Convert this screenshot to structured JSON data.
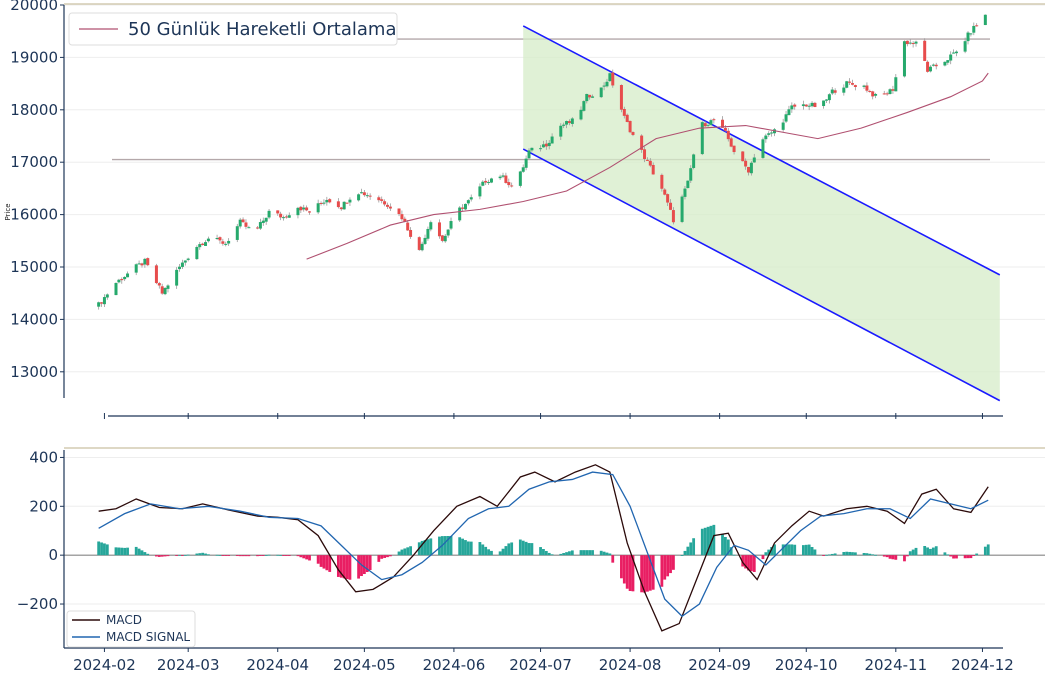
{
  "chart_data": [
    {
      "type": "candlestick",
      "title": "",
      "ylabel": "Price",
      "ylim": [
        12500,
        20000
      ],
      "yticks": [
        13000,
        14000,
        15000,
        16000,
        17000,
        18000,
        19000,
        20000
      ],
      "legend": {
        "label": "50 Günlük Hareketli Ortalama",
        "placement": "top-left"
      },
      "colors": {
        "up": "#26a96c",
        "down": "#e74c4c",
        "ma": "#b05070",
        "channel": "#1a1aff",
        "channel_fill": "#d6ecc8",
        "hline": "#b4a8aa"
      },
      "horizontal_levels": [
        19350,
        17050
      ],
      "close_anchors": [
        [
          "2024-01-30",
          14280
        ],
        [
          "2024-02-05",
          14700
        ],
        [
          "2024-02-12",
          15000
        ],
        [
          "2024-02-15",
          15100
        ],
        [
          "2024-02-21",
          14500
        ],
        [
          "2024-02-27",
          15000
        ],
        [
          "2024-03-04",
          15400
        ],
        [
          "2024-03-08",
          15550
        ],
        [
          "2024-03-14",
          15450
        ],
        [
          "2024-03-19",
          15850
        ],
        [
          "2024-03-24",
          15650
        ],
        [
          "2024-03-29",
          16050
        ],
        [
          "2024-04-03",
          15950
        ],
        [
          "2024-04-08",
          16150
        ],
        [
          "2024-04-12",
          16050
        ],
        [
          "2024-04-18",
          16300
        ],
        [
          "2024-04-23",
          16150
        ],
        [
          "2024-04-28",
          16450
        ],
        [
          "2024-05-04",
          16350
        ],
        [
          "2024-05-09",
          16200
        ],
        [
          "2024-05-14",
          15950
        ],
        [
          "2024-05-20",
          15300
        ],
        [
          "2024-05-24",
          15900
        ],
        [
          "2024-05-28",
          15500
        ],
        [
          "2024-06-02",
          16050
        ],
        [
          "2024-06-07",
          16300
        ],
        [
          "2024-06-12",
          16650
        ],
        [
          "2024-06-17",
          16750
        ],
        [
          "2024-06-22",
          16500
        ],
        [
          "2024-06-27",
          17200
        ],
        [
          "2024-07-03",
          17350
        ],
        [
          "2024-07-08",
          17700
        ],
        [
          "2024-07-13",
          17800
        ],
        [
          "2024-07-17",
          18250
        ],
        [
          "2024-07-22",
          18400
        ],
        [
          "2024-07-25",
          18650
        ],
        [
          "2024-07-30",
          17850
        ],
        [
          "2024-08-03",
          17400
        ],
        [
          "2024-08-06",
          17100
        ],
        [
          "2024-08-09",
          16800
        ],
        [
          "2024-08-12",
          16500
        ],
        [
          "2024-08-16",
          15900
        ],
        [
          "2024-08-21",
          16600
        ],
        [
          "2024-08-25",
          17700
        ],
        [
          "2024-08-30",
          17800
        ],
        [
          "2024-09-03",
          17550
        ],
        [
          "2024-09-07",
          17100
        ],
        [
          "2024-09-11",
          16850
        ],
        [
          "2024-09-15",
          17400
        ],
        [
          "2024-09-21",
          17650
        ],
        [
          "2024-09-26",
          18050
        ],
        [
          "2024-10-01",
          18100
        ],
        [
          "2024-10-06",
          18050
        ],
        [
          "2024-10-10",
          18350
        ],
        [
          "2024-10-15",
          18500
        ],
        [
          "2024-10-21",
          18450
        ],
        [
          "2024-10-26",
          18200
        ],
        [
          "2024-10-31",
          18400
        ],
        [
          "2024-11-04",
          19300
        ],
        [
          "2024-11-09",
          19250
        ],
        [
          "2024-11-12",
          18750
        ],
        [
          "2024-11-17",
          18900
        ],
        [
          "2024-11-22",
          19100
        ],
        [
          "2024-11-27",
          19500
        ],
        [
          "2024-12-02",
          19800
        ]
      ],
      "ma50": [
        [
          "2024-04-11",
          15150
        ],
        [
          "2024-04-25",
          15450
        ],
        [
          "2024-05-10",
          15800
        ],
        [
          "2024-05-25",
          16000
        ],
        [
          "2024-06-10",
          16100
        ],
        [
          "2024-06-25",
          16250
        ],
        [
          "2024-07-10",
          16450
        ],
        [
          "2024-07-25",
          16900
        ],
        [
          "2024-08-10",
          17450
        ],
        [
          "2024-08-25",
          17650
        ],
        [
          "2024-09-10",
          17700
        ],
        [
          "2024-09-25",
          17550
        ],
        [
          "2024-10-05",
          17450
        ],
        [
          "2024-10-20",
          17650
        ],
        [
          "2024-11-05",
          17950
        ],
        [
          "2024-11-20",
          18250
        ],
        [
          "2024-12-01",
          18550
        ],
        [
          "2024-12-03",
          18700
        ]
      ],
      "channel": {
        "upper": [
          [
            "2024-06-25",
            19600
          ],
          [
            "2024-12-07",
            14850
          ]
        ],
        "lower": [
          [
            "2024-06-25",
            17250
          ],
          [
            "2024-12-07",
            12450
          ]
        ]
      }
    },
    {
      "type": "line+bar",
      "ylim": [
        -380,
        410
      ],
      "yticks": [
        -200,
        0,
        200,
        400
      ],
      "legend": {
        "placement": "bottom-left"
      },
      "xticks": [
        "2024-02",
        "2024-03",
        "2024-04",
        "2024-05",
        "2024-06",
        "2024-07",
        "2024-08",
        "2024-09",
        "2024-10",
        "2024-11",
        "2024-12"
      ],
      "series": [
        {
          "name": "MACD",
          "color": "#2b0a0a",
          "points": [
            [
              "2024-01-30",
              180
            ],
            [
              "2024-02-05",
              190
            ],
            [
              "2024-02-12",
              230
            ],
            [
              "2024-02-20",
              195
            ],
            [
              "2024-02-28",
              190
            ],
            [
              "2024-03-06",
              210
            ],
            [
              "2024-03-15",
              185
            ],
            [
              "2024-03-25",
              160
            ],
            [
              "2024-04-01",
              155
            ],
            [
              "2024-04-08",
              145
            ],
            [
              "2024-04-15",
              80
            ],
            [
              "2024-04-22",
              -60
            ],
            [
              "2024-04-28",
              -150
            ],
            [
              "2024-05-04",
              -140
            ],
            [
              "2024-05-11",
              -90
            ],
            [
              "2024-05-18",
              0
            ],
            [
              "2024-05-25",
              100
            ],
            [
              "2024-06-02",
              200
            ],
            [
              "2024-06-10",
              240
            ],
            [
              "2024-06-16",
              200
            ],
            [
              "2024-06-24",
              320
            ],
            [
              "2024-06-29",
              340
            ],
            [
              "2024-07-06",
              300
            ],
            [
              "2024-07-13",
              340
            ],
            [
              "2024-07-20",
              370
            ],
            [
              "2024-07-25",
              340
            ],
            [
              "2024-07-31",
              50
            ],
            [
              "2024-08-06",
              -150
            ],
            [
              "2024-08-12",
              -310
            ],
            [
              "2024-08-18",
              -280
            ],
            [
              "2024-08-24",
              -100
            ],
            [
              "2024-08-30",
              80
            ],
            [
              "2024-09-04",
              90
            ],
            [
              "2024-09-09",
              -30
            ],
            [
              "2024-09-14",
              -100
            ],
            [
              "2024-09-20",
              50
            ],
            [
              "2024-09-26",
              120
            ],
            [
              "2024-10-02",
              180
            ],
            [
              "2024-10-07",
              160
            ],
            [
              "2024-10-15",
              190
            ],
            [
              "2024-10-22",
              200
            ],
            [
              "2024-10-29",
              180
            ],
            [
              "2024-11-04",
              130
            ],
            [
              "2024-11-10",
              250
            ],
            [
              "2024-11-15",
              270
            ],
            [
              "2024-11-21",
              190
            ],
            [
              "2024-11-27",
              175
            ],
            [
              "2024-12-03",
              280
            ]
          ]
        },
        {
          "name": "MACD SIGNAL",
          "color": "#2166b0",
          "points": [
            [
              "2024-01-30",
              110
            ],
            [
              "2024-02-08",
              170
            ],
            [
              "2024-02-17",
              210
            ],
            [
              "2024-02-27",
              190
            ],
            [
              "2024-03-08",
              200
            ],
            [
              "2024-03-19",
              180
            ],
            [
              "2024-03-29",
              155
            ],
            [
              "2024-04-08",
              150
            ],
            [
              "2024-04-16",
              120
            ],
            [
              "2024-04-23",
              40
            ],
            [
              "2024-04-30",
              -40
            ],
            [
              "2024-05-07",
              -100
            ],
            [
              "2024-05-14",
              -80
            ],
            [
              "2024-05-21",
              -30
            ],
            [
              "2024-05-28",
              40
            ],
            [
              "2024-06-06",
              150
            ],
            [
              "2024-06-13",
              190
            ],
            [
              "2024-06-20",
              200
            ],
            [
              "2024-06-27",
              270
            ],
            [
              "2024-07-04",
              300
            ],
            [
              "2024-07-12",
              310
            ],
            [
              "2024-07-19",
              340
            ],
            [
              "2024-07-26",
              330
            ],
            [
              "2024-08-01",
              200
            ],
            [
              "2024-08-07",
              10
            ],
            [
              "2024-08-13",
              -180
            ],
            [
              "2024-08-19",
              -250
            ],
            [
              "2024-08-25",
              -200
            ],
            [
              "2024-08-31",
              -50
            ],
            [
              "2024-09-06",
              40
            ],
            [
              "2024-09-11",
              20
            ],
            [
              "2024-09-17",
              -40
            ],
            [
              "2024-09-23",
              30
            ],
            [
              "2024-09-29",
              100
            ],
            [
              "2024-10-06",
              160
            ],
            [
              "2024-10-14",
              170
            ],
            [
              "2024-10-22",
              190
            ],
            [
              "2024-10-30",
              190
            ],
            [
              "2024-11-06",
              150
            ],
            [
              "2024-11-13",
              230
            ],
            [
              "2024-11-20",
              210
            ],
            [
              "2024-11-27",
              190
            ],
            [
              "2024-12-03",
              225
            ]
          ]
        }
      ],
      "histogram_colors": {
        "positive": "#26a69a",
        "negative": "#e91e63"
      }
    }
  ]
}
